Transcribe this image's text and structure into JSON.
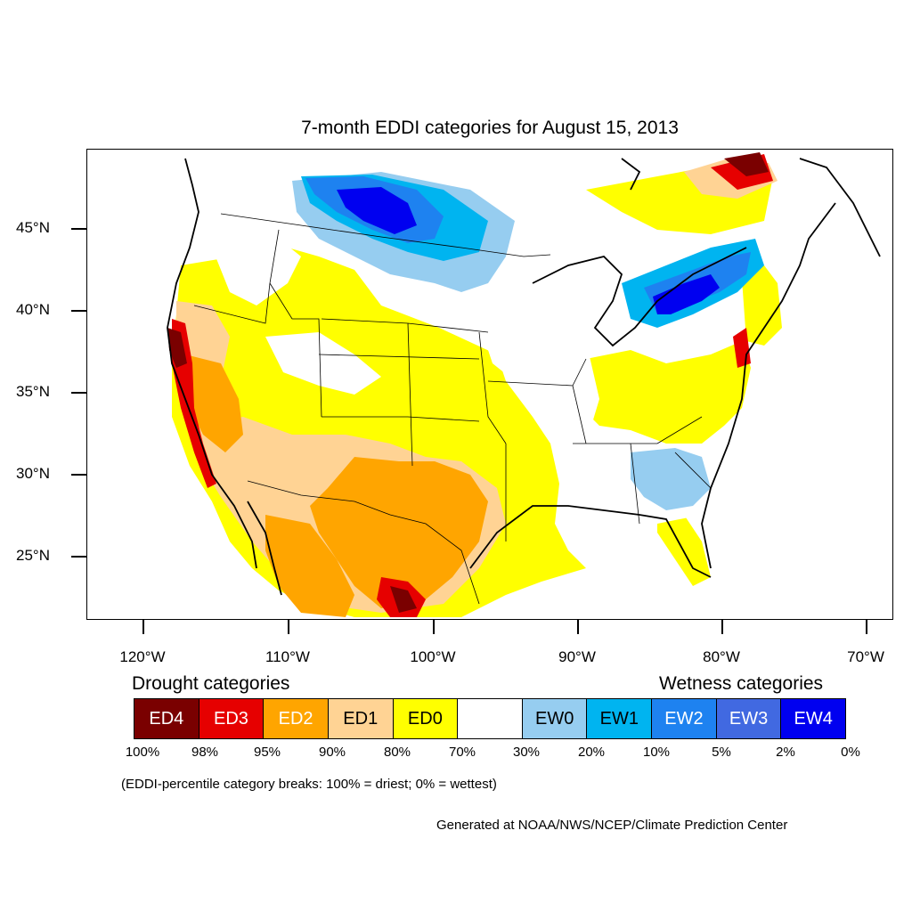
{
  "title": "7-month EDDI categories for August 15, 2013",
  "lat_labels": [
    "45°N",
    "40°N",
    "35°N",
    "30°N",
    "25°N"
  ],
  "lon_labels": [
    "120°W",
    "110°W",
    "100°W",
    "90°W",
    "80°W",
    "70°W"
  ],
  "drought_heading": "Drought categories",
  "wetness_heading": "Wetness categories",
  "legend": [
    {
      "label": "ED4",
      "color": "#7a0000",
      "text_color": "#ffffff"
    },
    {
      "label": "ED3",
      "color": "#e60000",
      "text_color": "#ffffff"
    },
    {
      "label": "ED2",
      "color": "#ffa500",
      "text_color": "#ffffff"
    },
    {
      "label": "ED1",
      "color": "#ffd394",
      "text_color": "#000000"
    },
    {
      "label": "ED0",
      "color": "#ffff00",
      "text_color": "#000000"
    },
    {
      "label": "",
      "color": "#ffffff",
      "text_color": "#000000"
    },
    {
      "label": "EW0",
      "color": "#96cdf0",
      "text_color": "#000000"
    },
    {
      "label": "EW1",
      "color": "#00b4f0",
      "text_color": "#000000"
    },
    {
      "label": "EW2",
      "color": "#1e82f0",
      "text_color": "#ffffff"
    },
    {
      "label": "EW3",
      "color": "#4169e1",
      "text_color": "#ffffff"
    },
    {
      "label": "EW4",
      "color": "#0000f0",
      "text_color": "#ffffff"
    }
  ],
  "percent_labels": [
    "100%",
    "98%",
    "95%",
    "90%",
    "80%",
    "70%",
    "30%",
    "20%",
    "10%",
    "5%",
    "2%",
    "0%"
  ],
  "note": "(EDDI-percentile category breaks: 100% = driest; 0% = wettest)",
  "credit": "Generated at NOAA/NWS/NCEP/Climate Prediction Center"
}
